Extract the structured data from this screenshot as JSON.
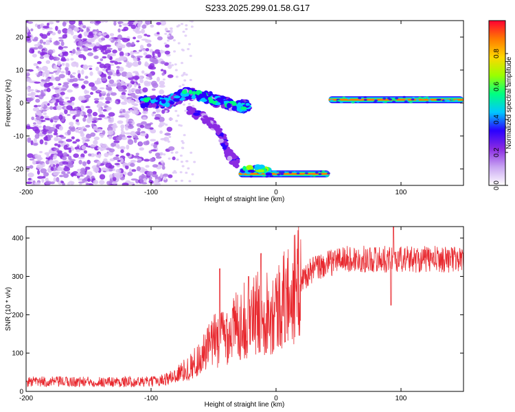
{
  "figure": {
    "title": "S233.2025.299.01.58.G17"
  },
  "chart_data": [
    {
      "type": "heatmap",
      "title": "S233.2025.299.01.58.G17",
      "xlabel": "Height of straight line (km)",
      "ylabel": "Frequency (Hz)",
      "xlim": [
        -200,
        150
      ],
      "ylim": [
        -25,
        25
      ],
      "xticks": [
        -200,
        -100,
        0,
        100
      ],
      "yticks": [
        -20,
        -10,
        0,
        10,
        20
      ],
      "colorbar": {
        "label": "Normalized spectral amplitude",
        "range": [
          0,
          1
        ],
        "ticks": [
          "0.0",
          "0.2",
          "0.4",
          "0.6",
          "0.8"
        ],
        "colormap": [
          "#ffffff",
          "#c9a6f2",
          "#8a2be2",
          "#2a00ff",
          "#00c8ff",
          "#00ff80",
          "#9aff00",
          "#ffd700",
          "#ff7a00",
          "#ff0033"
        ]
      },
      "features": {
        "noise_region_x": [
          -200,
          -90
        ],
        "upper_descending_branch": [
          [
            -108,
            0
          ],
          [
            -85,
            0.5
          ],
          [
            -70,
            3
          ],
          [
            -50,
            1
          ],
          [
            -30,
            -1
          ],
          [
            -22,
            -1
          ]
        ],
        "lower_descending_branch": [
          [
            -70,
            -2
          ],
          [
            -55,
            -5
          ],
          [
            -45,
            -9
          ],
          [
            -38,
            -15
          ],
          [
            -30,
            -19
          ]
        ],
        "low_band": {
          "x": [
            -30,
            43
          ],
          "y": -21.5
        },
        "high_band": {
          "x": [
            42,
            150
          ],
          "y": 1
        }
      }
    },
    {
      "type": "line",
      "xlabel": "Height of straight line (km)",
      "ylabel": "SNR (10 * v/v)",
      "xlim": [
        -200,
        150
      ],
      "ylim": [
        0,
        430
      ],
      "xticks": [
        -200,
        -100,
        0,
        100
      ],
      "yticks": [
        0,
        100,
        200,
        300,
        400
      ],
      "color": "#e8282e",
      "profile": [
        [
          -200,
          25
        ],
        [
          -100,
          25
        ],
        [
          -85,
          35
        ],
        [
          -70,
          60
        ],
        [
          -60,
          90
        ],
        [
          -50,
          130
        ],
        [
          -40,
          150
        ],
        [
          -30,
          175
        ],
        [
          -20,
          195
        ],
        [
          -10,
          210
        ],
        [
          0,
          215
        ],
        [
          10,
          250
        ],
        [
          20,
          290
        ],
        [
          30,
          320
        ],
        [
          40,
          330
        ],
        [
          50,
          345
        ],
        [
          150,
          345
        ]
      ],
      "spikes": [
        [
          -45,
          320
        ],
        [
          -22,
          300
        ],
        [
          -12,
          360
        ],
        [
          94,
          430
        ],
        [
          92,
          225
        ]
      ]
    }
  ]
}
